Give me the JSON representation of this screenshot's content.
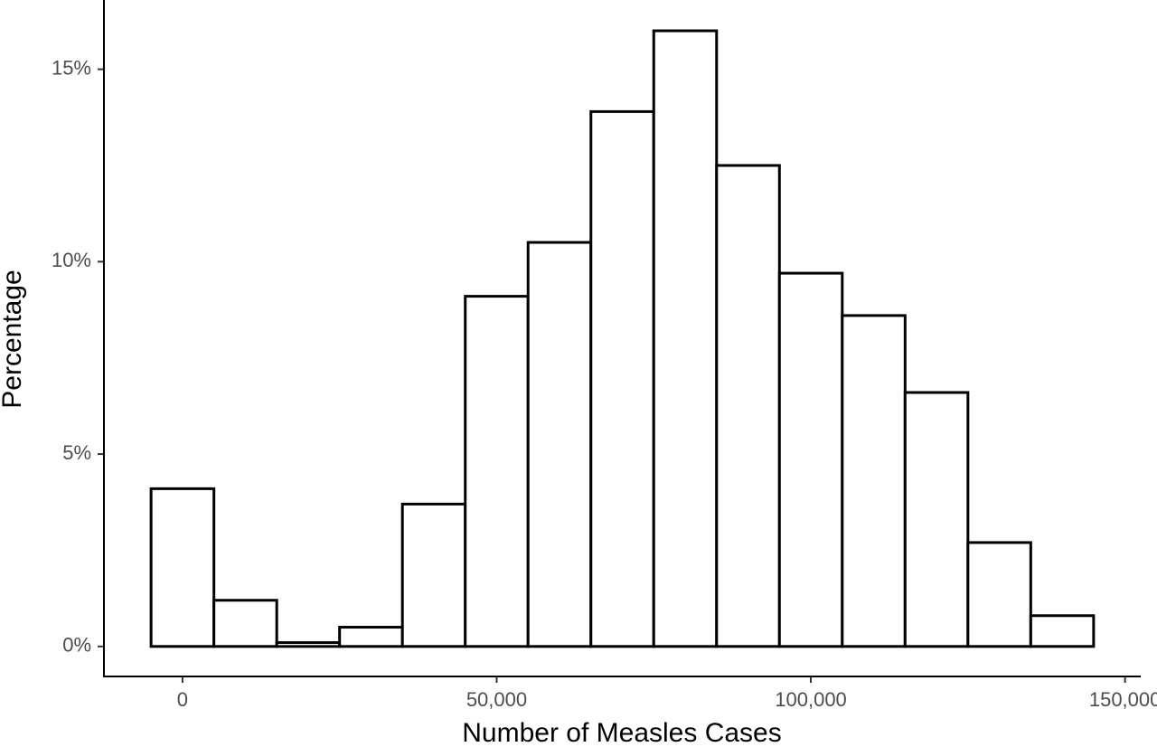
{
  "chart_data": {
    "type": "histogram",
    "x_label": "Number of Measles Cases",
    "y_label": "Percentage",
    "bins": [
      -5000,
      5000,
      15000,
      25000,
      35000,
      45000,
      55000,
      65000,
      75000,
      85000,
      95000,
      105000,
      115000,
      125000,
      135000,
      145000
    ],
    "values": [
      4.1,
      1.2,
      0.1,
      0.5,
      3.7,
      9.1,
      10.5,
      13.9,
      16.0,
      12.5,
      9.7,
      8.6,
      6.6,
      2.7,
      0.8
    ],
    "fill": "#ffffff",
    "edge_color": "#000000",
    "xlim": [
      -12500,
      152500
    ],
    "ylim": [
      -0.78,
      16.8
    ],
    "xticks": [
      0,
      {
        "value": 50000,
        "label": "50,000"
      },
      {
        "value": 100000,
        "label": "100,000"
      },
      {
        "value": 150000,
        "label": "150,000"
      }
    ],
    "yticks": [
      {
        "value": 0,
        "label": "0%"
      },
      {
        "value": 5,
        "label": "5%"
      },
      {
        "value": 10,
        "label": "10%"
      },
      {
        "value": 15,
        "label": "15%"
      }
    ],
    "grid": false
  }
}
